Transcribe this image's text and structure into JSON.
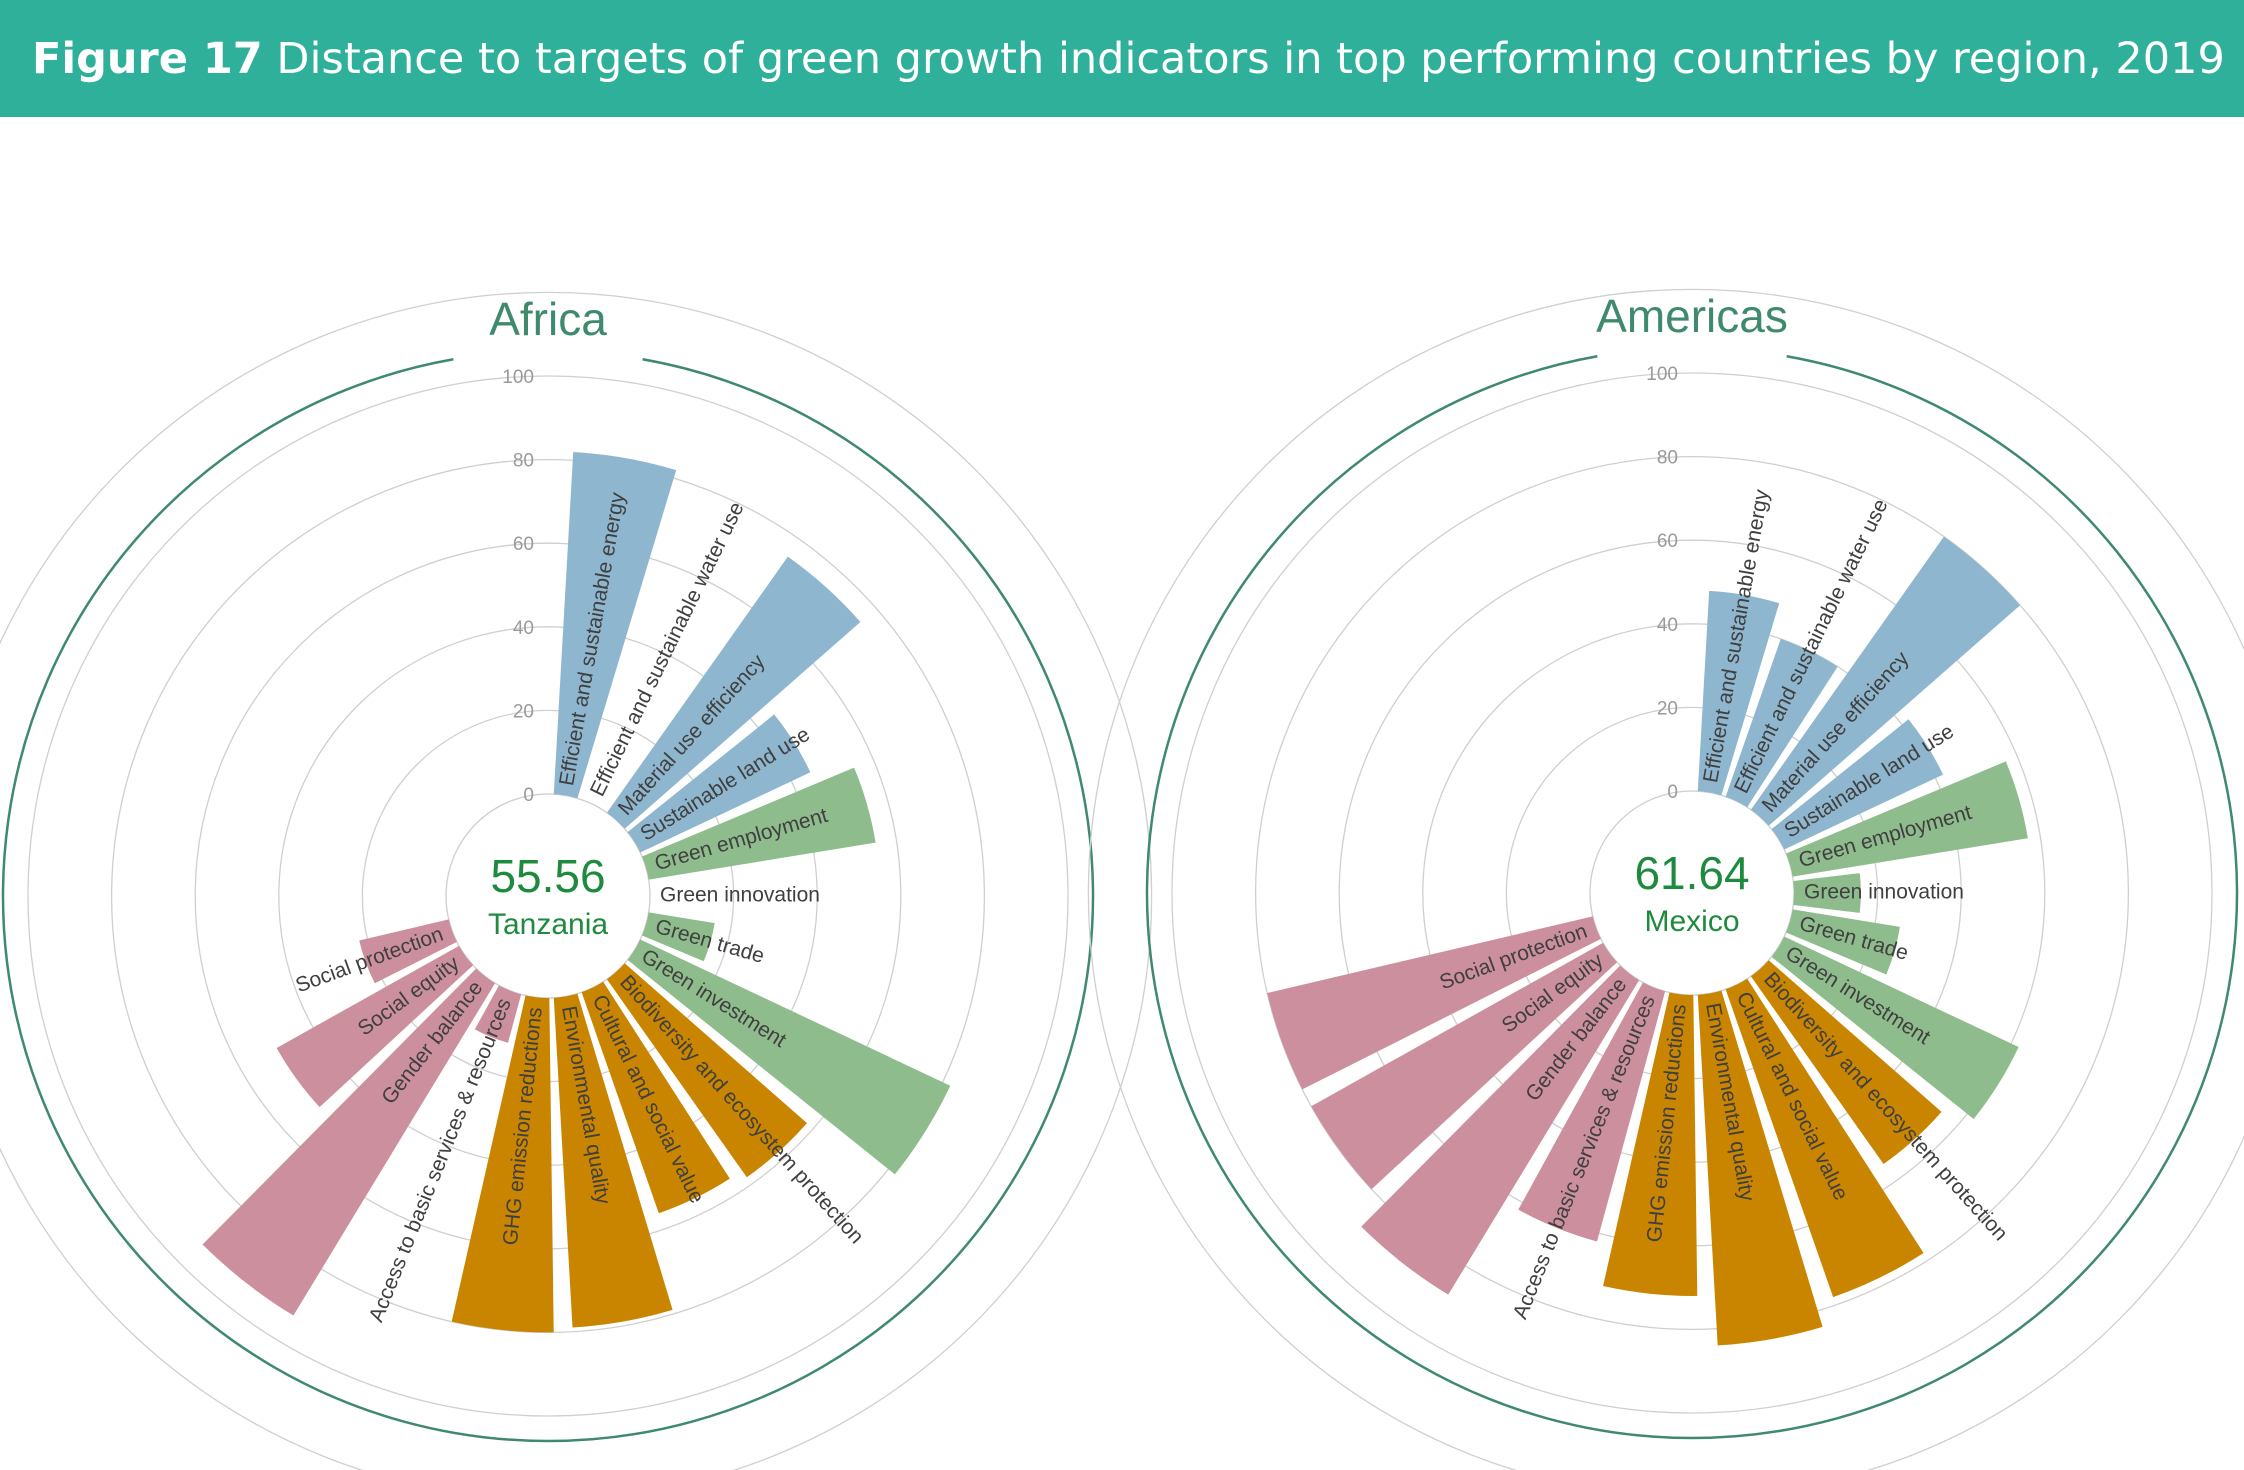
{
  "header": {
    "figure_label": "Figure 17",
    "title": "Distance to targets of green growth indicators in top performing countries by region, 2019",
    "background_color": "#2eb09b"
  },
  "colors": {
    "efficient_resource_use": "#8fb6cf",
    "natural_capital": "#cc8f9e",
    "green_economic_opportunities": "#8fbc8c",
    "social_inclusion": "#c98500",
    "title_text": "#3f8a6c",
    "center_text": "#1e8a3e",
    "outer_circle": "#3f8a6c",
    "grid": "#cfcfcf"
  },
  "chart_data": [
    {
      "type": "radial-bar",
      "region": "Africa",
      "country": "Tanzania",
      "score": "55.56",
      "ylim": [
        0,
        100
      ],
      "ticks": [
        "0",
        "20",
        "40",
        "60",
        "80",
        "100"
      ],
      "series": [
        {
          "label": "Efficient and sustainable energy",
          "value": 82,
          "group": "efficient_resource_use"
        },
        {
          "label": "Efficient and sustainable water use",
          "value": 0,
          "group": "efficient_resource_use"
        },
        {
          "label": "Material use efficiency",
          "value": 75,
          "group": "efficient_resource_use"
        },
        {
          "label": "Sustainable land use",
          "value": 45,
          "group": "efficient_resource_use"
        },
        {
          "label": "Green employment",
          "value": 55,
          "group": "green_economic_opportunities"
        },
        {
          "label": "Green innovation",
          "value": 0,
          "group": "green_economic_opportunities"
        },
        {
          "label": "Green trade",
          "value": 16,
          "group": "green_economic_opportunities"
        },
        {
          "label": "Green investment",
          "value": 82,
          "group": "green_economic_opportunities"
        },
        {
          "label": "Biodiversity and ecosystem protection",
          "value": 58,
          "group": "social_inclusion"
        },
        {
          "label": "Cultural and social value",
          "value": 56,
          "group": "social_inclusion"
        },
        {
          "label": "Environmental quality",
          "value": 79,
          "group": "social_inclusion"
        },
        {
          "label": "GHG emission reductions",
          "value": 80,
          "group": "social_inclusion"
        },
        {
          "label": "Access to basic services & resources",
          "value": 12,
          "group": "natural_capital"
        },
        {
          "label": "Gender balance",
          "value": 93,
          "group": "natural_capital"
        },
        {
          "label": "Social equity",
          "value": 50,
          "group": "natural_capital"
        },
        {
          "label": "Social protection",
          "value": 22,
          "group": "natural_capital"
        }
      ]
    },
    {
      "type": "radial-bar",
      "region": "Americas",
      "country": "Mexico",
      "score": "61.64",
      "ylim": [
        0,
        100
      ],
      "ticks": [
        "0",
        "20",
        "40",
        "60",
        "80",
        "100"
      ],
      "series": [
        {
          "label": "Efficient and sustainable energy",
          "value": 48,
          "group": "efficient_resource_use"
        },
        {
          "label": "Efficient and sustainable water use",
          "value": 40,
          "group": "efficient_resource_use"
        },
        {
          "label": "Material use efficiency",
          "value": 80,
          "group": "efficient_resource_use"
        },
        {
          "label": "Sustainable land use",
          "value": 42,
          "group": "efficient_resource_use"
        },
        {
          "label": "Green employment",
          "value": 57,
          "group": "green_economic_opportunities"
        },
        {
          "label": "Green innovation",
          "value": 16,
          "group": "green_economic_opportunities"
        },
        {
          "label": "Green trade",
          "value": 26,
          "group": "green_economic_opportunities"
        },
        {
          "label": "Green investment",
          "value": 62,
          "group": "green_economic_opportunities"
        },
        {
          "label": "Biodiversity and ecosystem protection",
          "value": 55,
          "group": "social_inclusion"
        },
        {
          "label": "Cultural and social value",
          "value": 78,
          "group": "social_inclusion"
        },
        {
          "label": "Environmental quality",
          "value": 84,
          "group": "social_inclusion"
        },
        {
          "label": "GHG emission reductions",
          "value": 72,
          "group": "social_inclusion"
        },
        {
          "label": "Access to basic services & resources",
          "value": 62,
          "group": "natural_capital"
        },
        {
          "label": "Gender balance",
          "value": 88,
          "group": "natural_capital"
        },
        {
          "label": "Social equity",
          "value": 80,
          "group": "natural_capital"
        },
        {
          "label": "Social protection",
          "value": 80,
          "group": "natural_capital"
        }
      ]
    }
  ]
}
